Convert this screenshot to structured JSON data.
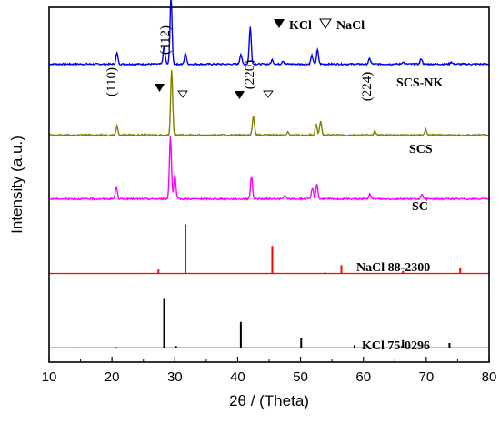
{
  "chart_data": {
    "type": "line",
    "xlabel": "2θ / (Theta)",
    "ylabel": "Intensity (a.u.)",
    "xlim": [
      10,
      80
    ],
    "x_ticks": [
      "10",
      "20",
      "30",
      "40",
      "50",
      "60",
      "70",
      "80"
    ],
    "legend": {
      "kcl": "KCl",
      "nacl": "NaCl"
    },
    "series": [
      {
        "name": "SCS-NK",
        "color": "#0000ee",
        "baseline_y": 0.84,
        "peaks": [
          [
            20.8,
            10
          ],
          [
            28.3,
            16
          ],
          [
            29.4,
            62
          ],
          [
            31.7,
            10
          ],
          [
            40.5,
            9
          ],
          [
            42.0,
            34
          ],
          [
            45.5,
            4
          ],
          [
            47.2,
            3
          ],
          [
            51.8,
            8
          ],
          [
            52.7,
            13
          ],
          [
            61.0,
            5
          ],
          [
            66.3,
            2
          ],
          [
            69.2,
            5
          ],
          [
            74.0,
            2
          ]
        ]
      },
      {
        "name": "SCS",
        "color": "#808000",
        "baseline_y": 0.64,
        "peaks": [
          [
            20.8,
            8
          ],
          [
            29.5,
            59
          ],
          [
            42.5,
            18
          ],
          [
            48.0,
            3
          ],
          [
            52.5,
            10
          ],
          [
            53.2,
            13
          ],
          [
            61.8,
            4
          ],
          [
            69.9,
            5
          ]
        ]
      },
      {
        "name": "SC",
        "color": "#ff00ff",
        "baseline_y": 0.46,
        "peaks": [
          [
            20.7,
            11
          ],
          [
            29.3,
            58
          ],
          [
            30.0,
            22
          ],
          [
            42.2,
            21
          ],
          [
            47.5,
            3
          ],
          [
            51.9,
            10
          ],
          [
            52.6,
            14
          ],
          [
            61.0,
            4
          ],
          [
            69.3,
            4
          ]
        ]
      },
      {
        "name": "NaCl 88-2300",
        "color": "#ff0000",
        "baseline_y": 0.25,
        "peaks": [
          [
            27.4,
            8
          ],
          [
            31.7,
            100
          ],
          [
            45.5,
            56
          ],
          [
            53.9,
            2
          ],
          [
            56.5,
            17
          ],
          [
            66.3,
            5
          ],
          [
            75.4,
            12
          ]
        ]
      },
      {
        "name": "KCl 75-0296",
        "color": "#000000",
        "baseline_y": 0.04,
        "peaks": [
          [
            14.8,
            1
          ],
          [
            20.6,
            2
          ],
          [
            28.3,
            100
          ],
          [
            30.2,
            4
          ],
          [
            40.5,
            53
          ],
          [
            50.1,
            20
          ],
          [
            58.6,
            6
          ],
          [
            66.3,
            16
          ],
          [
            69.8,
            3
          ],
          [
            73.7,
            10
          ]
        ]
      }
    ],
    "annotations": {
      "hkl": [
        "(110)",
        "(112)",
        "(220)",
        "(224)"
      ]
    }
  }
}
